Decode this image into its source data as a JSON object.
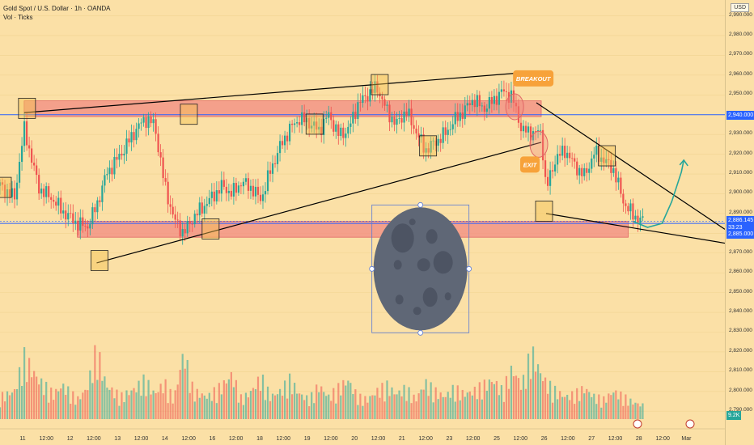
{
  "header": {
    "title": "Gold Spot / U.S. Dollar · 1h · OANDA",
    "subtitle": "Vol · Ticks"
  },
  "currency_button": "USD",
  "price_labels": {
    "level_upper": "2,940.000",
    "current": "2,886.145",
    "countdown": "33:23",
    "level_lower": "2,885.000",
    "volume": "9.2K"
  },
  "annotations": {
    "breakout": "BREAKOUT",
    "exit": "EXIT"
  },
  "colors": {
    "background": "#fbe0a6",
    "up_candle": "#26a69a",
    "down_candle": "#ef5350",
    "zone_fill": "#f28b82",
    "level_line": "#2962ff",
    "trend_line": "#000000",
    "arrow": "#26a69a",
    "moon": "#5f6776",
    "badge": "#f7a23a"
  },
  "chart_data": {
    "type": "candlestick",
    "xlabel": "",
    "ylabel": "",
    "ylim": [
      2786,
      2998
    ],
    "x_ticks": [
      "11",
      "12:00",
      "12",
      "12:00",
      "13",
      "12:00",
      "14",
      "12:00",
      "16",
      "12:00",
      "18",
      "12:00",
      "19",
      "12:00",
      "20",
      "12:00",
      "21",
      "12:00",
      "23",
      "12:00",
      "25",
      "12:00",
      "26",
      "12:00",
      "27",
      "12:00",
      "28",
      "12:00",
      "Mar"
    ],
    "y_ticks": [
      "2,790.000",
      "2,800.000",
      "2,810.000",
      "2,820.000",
      "2,830.000",
      "2,840.000",
      "2,850.000",
      "2,860.000",
      "2,870.000",
      "2,880.000",
      "2,890.000",
      "2,900.000",
      "2,910.000",
      "2,920.000",
      "2,930.000",
      "2,940.000",
      "2,950.000",
      "2,960.000",
      "2,970.000",
      "2,980.000",
      "2,990.000"
    ],
    "x_range": [
      0,
      150
    ],
    "price_path": [
      [
        0,
        2904
      ],
      [
        3,
        2898
      ],
      [
        5,
        2933
      ],
      [
        8,
        2903
      ],
      [
        11,
        2897
      ],
      [
        13,
        2891
      ],
      [
        16,
        2885
      ],
      [
        18,
        2883
      ],
      [
        20,
        2894
      ],
      [
        22,
        2910
      ],
      [
        25,
        2920
      ],
      [
        28,
        2932
      ],
      [
        30,
        2938
      ],
      [
        32,
        2935
      ],
      [
        34,
        2905
      ],
      [
        36,
        2887
      ],
      [
        38,
        2880
      ],
      [
        40,
        2888
      ],
      [
        43,
        2896
      ],
      [
        46,
        2904
      ],
      [
        48,
        2900
      ],
      [
        50,
        2906
      ],
      [
        52,
        2903
      ],
      [
        54,
        2897
      ],
      [
        56,
        2912
      ],
      [
        58,
        2924
      ],
      [
        60,
        2933
      ],
      [
        62,
        2938
      ],
      [
        64,
        2936
      ],
      [
        66,
        2932
      ],
      [
        68,
        2940
      ],
      [
        70,
        2930
      ],
      [
        72,
        2932
      ],
      [
        74,
        2945
      ],
      [
        76,
        2950
      ],
      [
        78,
        2954
      ],
      [
        80,
        2942
      ],
      [
        82,
        2935
      ],
      [
        84,
        2942
      ],
      [
        86,
        2932
      ],
      [
        88,
        2922
      ],
      [
        90,
        2926
      ],
      [
        92,
        2930
      ],
      [
        94,
        2937
      ],
      [
        96,
        2942
      ],
      [
        98,
        2948
      ],
      [
        100,
        2943
      ],
      [
        102,
        2947
      ],
      [
        104,
        2952
      ],
      [
        106,
        2949
      ],
      [
        108,
        2932
      ],
      [
        110,
        2931
      ],
      [
        112,
        2931
      ],
      [
        113,
        2902
      ],
      [
        115,
        2918
      ],
      [
        117,
        2922
      ],
      [
        119,
        2914
      ],
      [
        121,
        2909
      ],
      [
        123,
        2921
      ],
      [
        125,
        2917
      ],
      [
        127,
        2912
      ],
      [
        129,
        2896
      ],
      [
        131,
        2889
      ],
      [
        133,
        2886
      ]
    ],
    "volume_path": [
      [
        0,
        4.0
      ],
      [
        3,
        5.0
      ],
      [
        5,
        11.0
      ],
      [
        8,
        7.0
      ],
      [
        11,
        4.5
      ],
      [
        13,
        6.0
      ],
      [
        16,
        3.5
      ],
      [
        18,
        5.5
      ],
      [
        20,
        12.5
      ],
      [
        22,
        6.0
      ],
      [
        25,
        4.0
      ],
      [
        28,
        5.5
      ],
      [
        30,
        7.0
      ],
      [
        32,
        4.5
      ],
      [
        34,
        6.5
      ],
      [
        36,
        3.5
      ],
      [
        38,
        12.0
      ],
      [
        40,
        5.0
      ],
      [
        43,
        4.0
      ],
      [
        46,
        6.0
      ],
      [
        48,
        8.0
      ],
      [
        50,
        3.5
      ],
      [
        52,
        5.0
      ],
      [
        54,
        7.5
      ],
      [
        56,
        4.0
      ],
      [
        58,
        5.0
      ],
      [
        60,
        7.0
      ],
      [
        62,
        4.5
      ],
      [
        64,
        3.5
      ],
      [
        66,
        6.0
      ],
      [
        68,
        4.0
      ],
      [
        70,
        5.5
      ],
      [
        72,
        7.0
      ],
      [
        74,
        4.0
      ],
      [
        76,
        3.5
      ],
      [
        78,
        5.0
      ],
      [
        80,
        6.0
      ],
      [
        82,
        4.5
      ],
      [
        84,
        5.5
      ],
      [
        86,
        3.5
      ],
      [
        88,
        6.5
      ],
      [
        90,
        5.0
      ],
      [
        92,
        4.0
      ],
      [
        94,
        5.5
      ],
      [
        96,
        4.5
      ],
      [
        98,
        5.0
      ],
      [
        100,
        6.0
      ],
      [
        102,
        7.0
      ],
      [
        104,
        5.0
      ],
      [
        106,
        9.0
      ],
      [
        108,
        6.0
      ],
      [
        110,
        12.0
      ],
      [
        112,
        8.0
      ],
      [
        113,
        6.5
      ],
      [
        115,
        5.0
      ],
      [
        117,
        4.0
      ],
      [
        119,
        4.5
      ],
      [
        121,
        5.5
      ],
      [
        123,
        4.0
      ],
      [
        125,
        3.5
      ],
      [
        127,
        5.0
      ],
      [
        129,
        4.0
      ],
      [
        131,
        3.0
      ],
      [
        133,
        2.5
      ]
    ],
    "volume_ylim": [
      0,
      16
    ],
    "zones": [
      {
        "x0": 5,
        "x1": 112,
        "y0": 2939,
        "y1": 2947
      },
      {
        "x0": 16,
        "x1": 130,
        "y0": 2878,
        "y1": 2886
      }
    ],
    "horizontal_levels": [
      2940,
      2885
    ],
    "current_price": 2886.145,
    "trend_lines": [
      {
        "x0": 5,
        "x1": 107,
        "y0": 2941,
        "y1": 2961
      },
      {
        "x0": 20,
        "x1": 112,
        "y0": 2865,
        "y1": 2926
      },
      {
        "x0": 111,
        "x1": 150,
        "y0": 2946,
        "y1": 2882
      },
      {
        "x0": 113,
        "x1": 150,
        "y0": 2890,
        "y1": 2875
      }
    ],
    "swing_markers": [
      {
        "x": 0.5,
        "y": 2903
      },
      {
        "x": 5.5,
        "y": 2943
      },
      {
        "x": 20.5,
        "y": 2866
      },
      {
        "x": 39,
        "y": 2940
      },
      {
        "x": 43.5,
        "y": 2882
      },
      {
        "x": 65,
        "y": 2935
      },
      {
        "x": 78.5,
        "y": 2955
      },
      {
        "x": 88.5,
        "y": 2924
      },
      {
        "x": 112.5,
        "y": 2891
      },
      {
        "x": 125.5,
        "y": 2919
      }
    ],
    "circles": [
      {
        "x": 106.5,
        "y": 2944
      },
      {
        "x": 111.5,
        "y": 2925
      }
    ],
    "projection_path": [
      [
        131,
        2886
      ],
      [
        134,
        2883
      ],
      [
        137,
        2885
      ],
      [
        139,
        2896
      ],
      [
        141,
        2911
      ],
      [
        141.5,
        2917
      ]
    ],
    "moon_center": {
      "x": 87,
      "y": 2862
    }
  }
}
